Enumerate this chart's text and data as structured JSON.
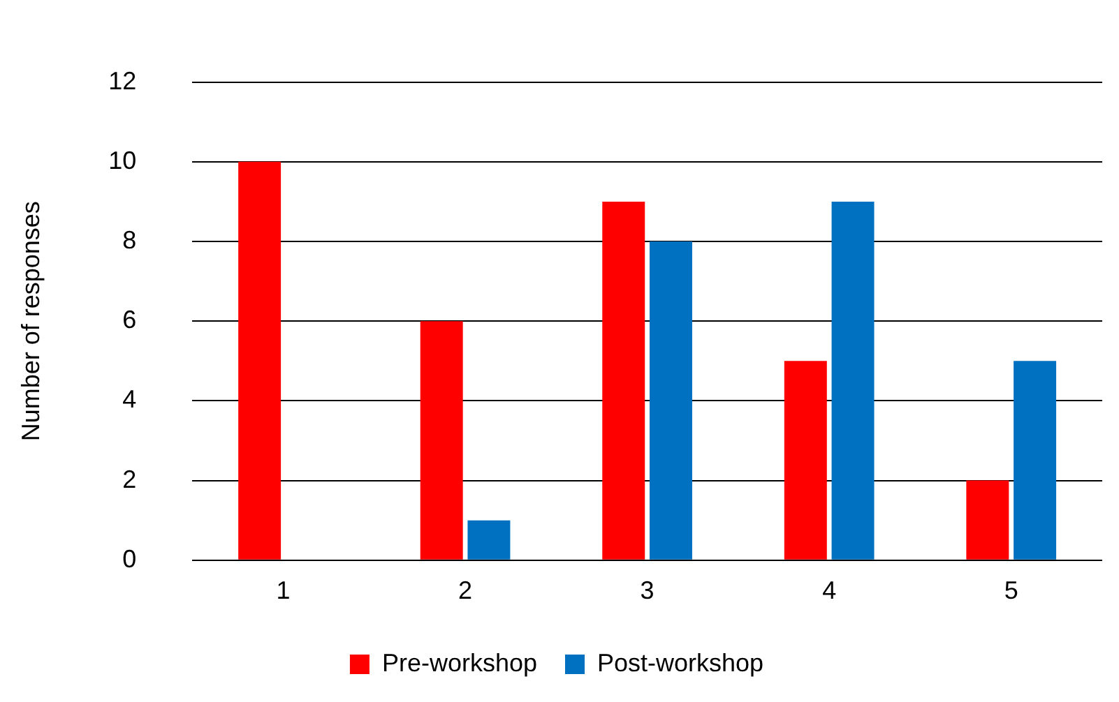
{
  "chart_data": {
    "type": "bar",
    "ylabel": "Number of responses",
    "categories": [
      "1",
      "2",
      "3",
      "4",
      "5"
    ],
    "series": [
      {
        "name": "Pre-workshop",
        "color": "#ff0000",
        "values": [
          10,
          6,
          9,
          5,
          2
        ]
      },
      {
        "name": "Post-workshop",
        "color": "#0070c0",
        "values": [
          0,
          1,
          8,
          9,
          5
        ]
      }
    ],
    "ylim": [
      0,
      12
    ],
    "yticks": [
      0,
      2,
      4,
      6,
      8,
      10,
      12
    ],
    "grid": "y",
    "legend": "bottom"
  }
}
